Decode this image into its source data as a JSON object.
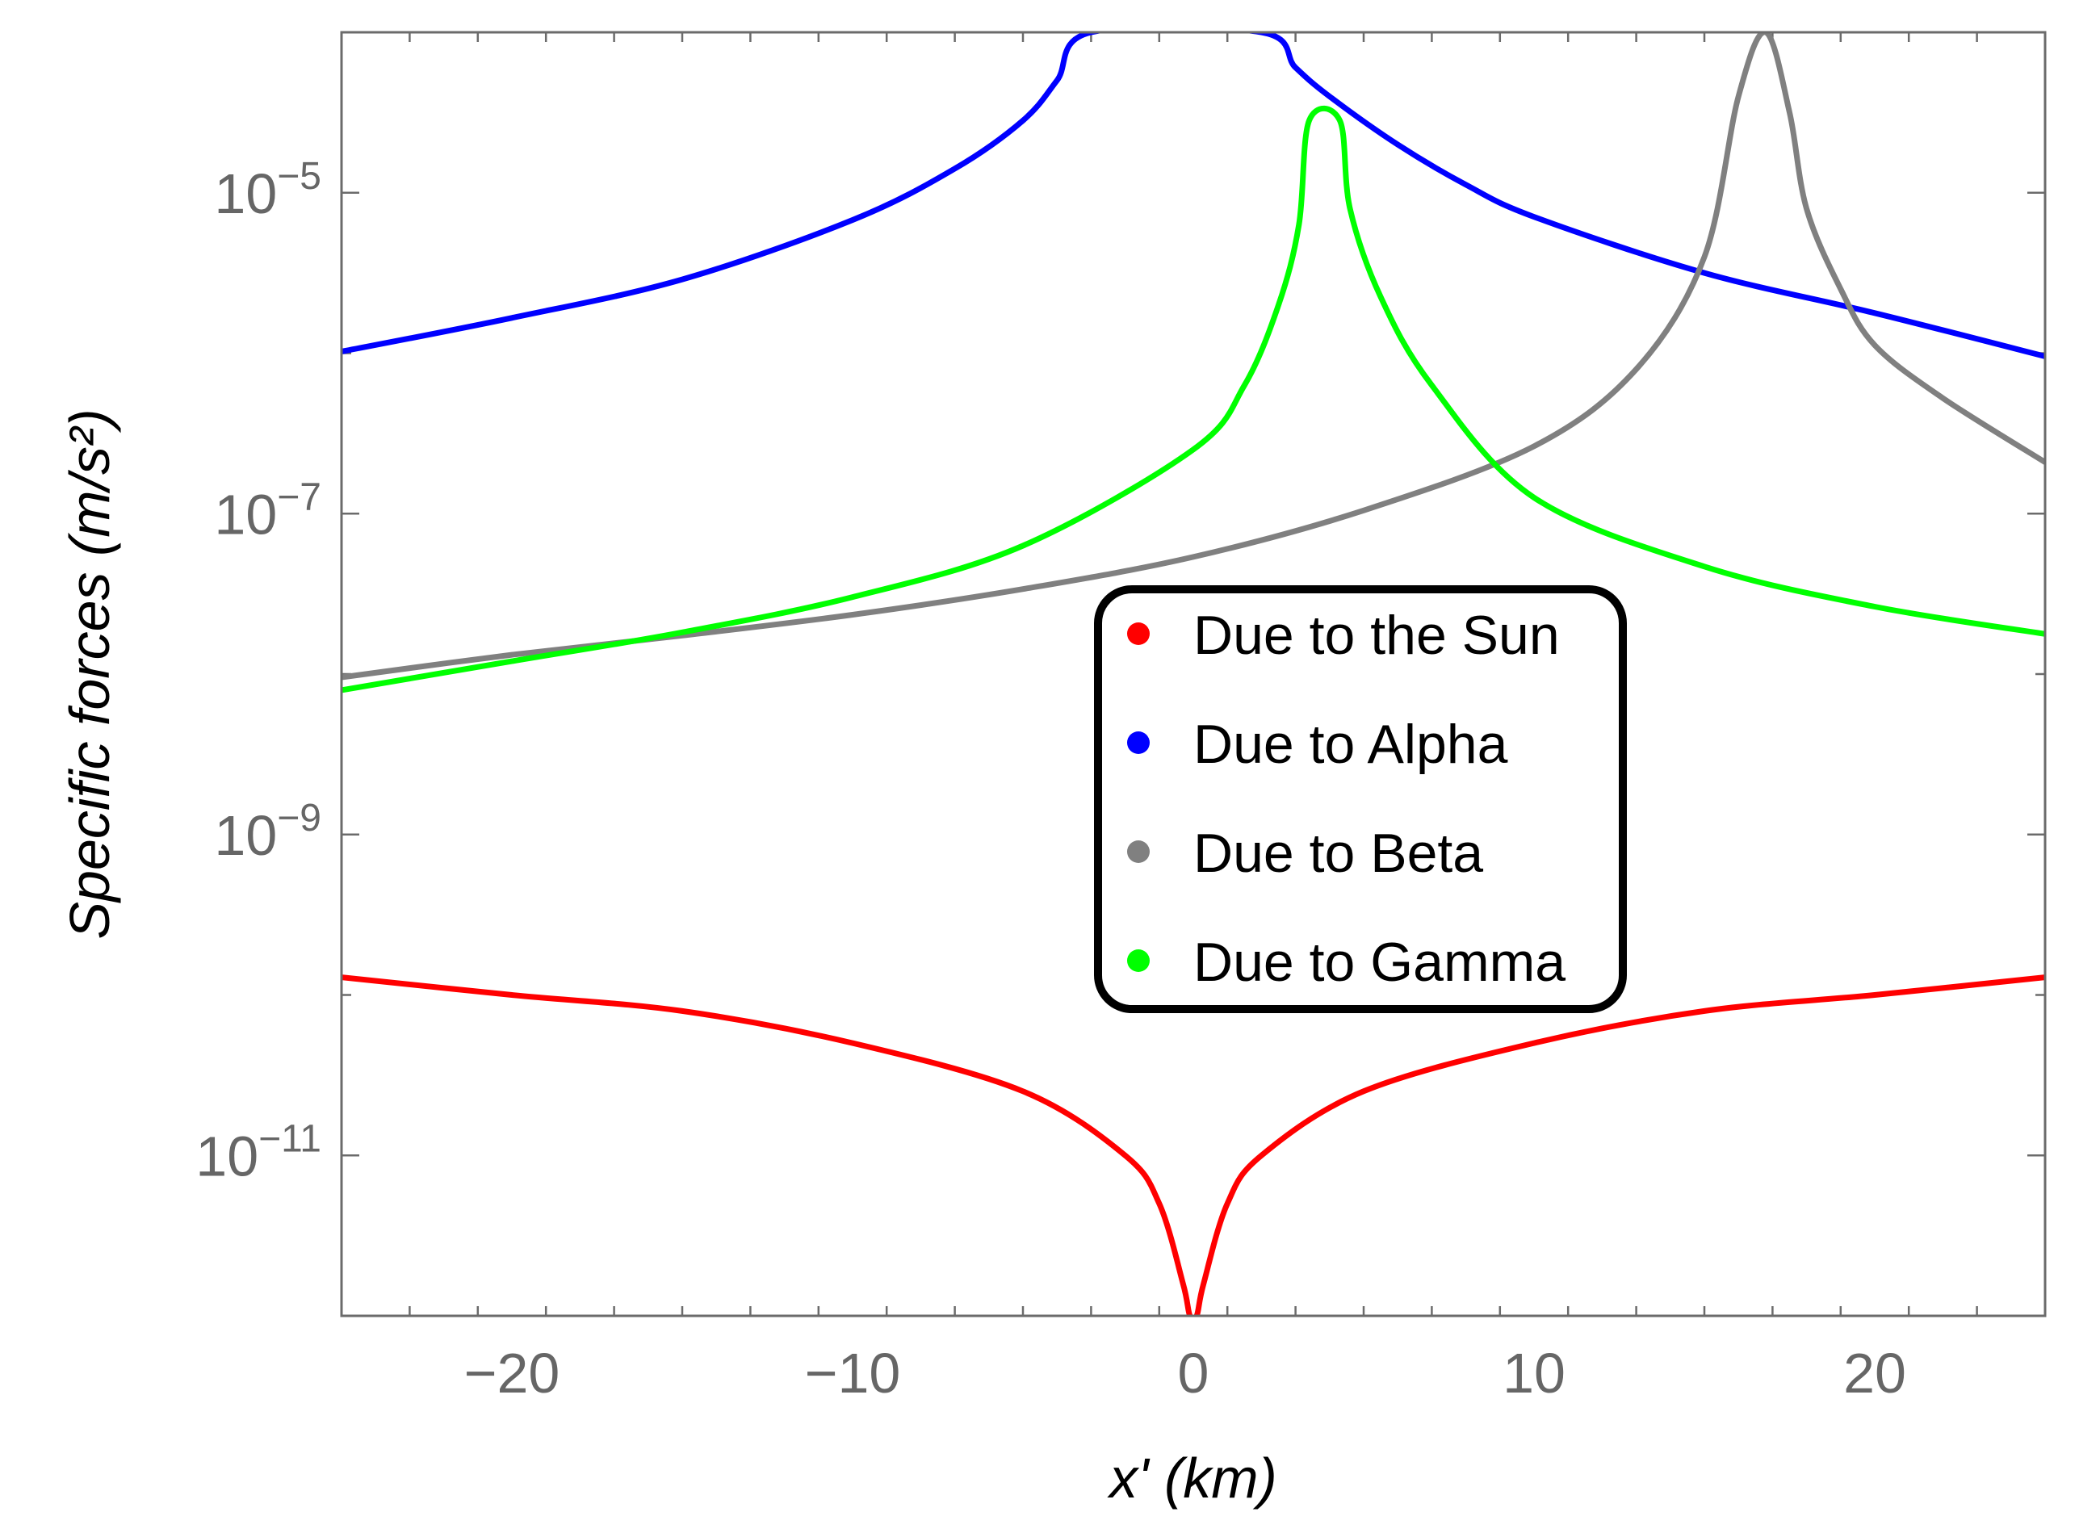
{
  "chart_data": {
    "type": "line",
    "title": "",
    "xlabel": "x' (km)",
    "ylabel": "Specific forces (m/s²)",
    "yscale": "log",
    "xlim": [
      -25,
      25
    ],
    "ylim_log10": [
      -12.0,
      -4.0
    ],
    "x_ticks": [
      -20,
      -10,
      0,
      10,
      20
    ],
    "x_tick_labels": [
      "−20",
      "−10",
      "0",
      "10",
      "20"
    ],
    "y_ticks_log10": [
      -11,
      -9,
      -7,
      -5
    ],
    "y_tick_labels": [
      {
        "base": "10",
        "exp": "−11"
      },
      {
        "base": "10",
        "exp": "−9"
      },
      {
        "base": "10",
        "exp": "−7"
      },
      {
        "base": "10",
        "exp": "−5"
      }
    ],
    "legend_position": "center",
    "series": [
      {
        "name": "Due to the Sun",
        "color": "#ff0000",
        "x": [
          -25,
          -20,
          -15,
          -10,
          -5,
          -2,
          -1,
          -0.3,
          -0.1,
          0.1,
          0.3,
          1,
          2,
          5,
          10,
          15,
          20,
          25
        ],
        "log10y": [
          -9.89,
          -10.0,
          -10.1,
          -10.3,
          -10.6,
          -11.0,
          -11.3,
          -11.8,
          -12.0,
          -12.0,
          -11.8,
          -11.3,
          -11.0,
          -10.6,
          -10.3,
          -10.1,
          -10.0,
          -9.89
        ]
      },
      {
        "name": "Due to Alpha",
        "color": "#0000ff",
        "x": [
          -25,
          -20,
          -15,
          -10,
          -7,
          -5,
          -4,
          -3,
          2,
          3,
          4,
          6,
          8,
          10,
          15,
          20,
          25
        ],
        "log10y": [
          -5.99,
          -5.78,
          -5.54,
          -5.17,
          -4.85,
          -4.55,
          -4.3,
          -4.0,
          -4.0,
          -4.22,
          -4.4,
          -4.7,
          -4.95,
          -5.15,
          -5.5,
          -5.75,
          -6.02
        ]
      },
      {
        "name": "Due to Beta",
        "color": "#808080",
        "x": [
          -25,
          -20,
          -15,
          -10,
          -5,
          0,
          5,
          10,
          13,
          15,
          16,
          16.8,
          17.5,
          18,
          19,
          20,
          22,
          25
        ],
        "log10y": [
          -8.02,
          -7.88,
          -7.76,
          -7.63,
          -7.47,
          -7.27,
          -6.98,
          -6.58,
          -6.1,
          -5.4,
          -4.4,
          -4.0,
          -4.5,
          -5.1,
          -5.6,
          -5.95,
          -6.28,
          -6.68
        ]
      },
      {
        "name": "Due to Gamma",
        "color": "#00ff00",
        "x": [
          -25,
          -20,
          -15,
          -10,
          -5,
          0,
          1.5,
          2.5,
          3.1,
          3.4,
          4.3,
          4.6,
          5.5,
          7,
          10,
          15,
          20,
          25
        ],
        "log10y": [
          -8.1,
          -7.92,
          -7.74,
          -7.52,
          -7.2,
          -6.6,
          -6.2,
          -5.7,
          -5.2,
          -4.55,
          -4.55,
          -5.1,
          -5.65,
          -6.2,
          -6.9,
          -7.33,
          -7.58,
          -7.75
        ]
      }
    ]
  }
}
